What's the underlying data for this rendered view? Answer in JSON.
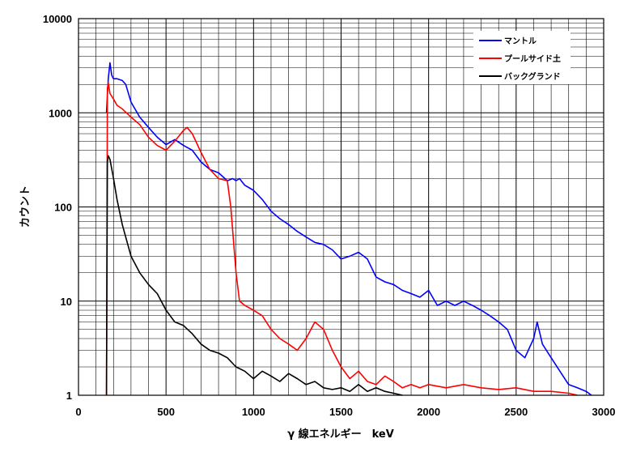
{
  "chart_data": {
    "type": "line",
    "title": "",
    "xlabel": "γ 線エネルギー　keV",
    "ylabel": "カウント",
    "xlim": [
      0,
      3000
    ],
    "ylim": [
      1,
      10000
    ],
    "y_scale": "log",
    "grid": true,
    "legend_position": "top-right",
    "x_ticks": [
      "0",
      "500",
      "1000",
      "1500",
      "2000",
      "2500",
      "3000"
    ],
    "y_ticks": [
      "1",
      "10",
      "100",
      "1000",
      "10000"
    ],
    "series": [
      {
        "name": "マントル",
        "color": "#0000ff",
        "x": [
          160,
          170,
          180,
          190,
          200,
          220,
          250,
          270,
          300,
          350,
          400,
          450,
          500,
          550,
          600,
          650,
          700,
          750,
          800,
          850,
          880,
          900,
          920,
          950,
          1000,
          1050,
          1100,
          1150,
          1200,
          1250,
          1300,
          1350,
          1400,
          1450,
          1500,
          1550,
          1600,
          1650,
          1700,
          1750,
          1800,
          1850,
          1900,
          1950,
          2000,
          2050,
          2100,
          2150,
          2200,
          2250,
          2300,
          2350,
          2400,
          2450,
          2500,
          2550,
          2600,
          2620,
          2650,
          2700,
          2750,
          2800,
          2850,
          2900,
          2930
        ],
        "y": [
          1000,
          2300,
          3400,
          2500,
          2300,
          2300,
          2200,
          2000,
          1300,
          900,
          700,
          550,
          460,
          520,
          450,
          400,
          300,
          250,
          230,
          190,
          200,
          190,
          200,
          170,
          150,
          120,
          90,
          75,
          65,
          55,
          48,
          42,
          40,
          35,
          28,
          30,
          33,
          28,
          18,
          16,
          15,
          13,
          12,
          11,
          13,
          9,
          10,
          9,
          10,
          9,
          8,
          7,
          6,
          5,
          3,
          2.5,
          4,
          6,
          3.5,
          2.5,
          1.8,
          1.3,
          1.2,
          1.1,
          1.0
        ]
      },
      {
        "name": "プールサイド土",
        "color": "#ff0000",
        "x": [
          160,
          165,
          170,
          180,
          200,
          220,
          250,
          300,
          350,
          400,
          450,
          500,
          550,
          600,
          620,
          650,
          700,
          750,
          800,
          850,
          870,
          900,
          920,
          950,
          1000,
          1050,
          1100,
          1150,
          1200,
          1250,
          1300,
          1350,
          1400,
          1450,
          1500,
          1550,
          1600,
          1650,
          1700,
          1750,
          1800,
          1850,
          1900,
          1950,
          2000,
          2100,
          2200,
          2300,
          2400,
          2500,
          2600,
          2700,
          2800,
          2850
        ],
        "y": [
          1,
          1800,
          2100,
          1600,
          1400,
          1200,
          1100,
          900,
          750,
          550,
          450,
          400,
          500,
          650,
          700,
          600,
          380,
          250,
          200,
          190,
          100,
          20,
          10,
          9,
          8,
          7,
          5,
          4,
          3.5,
          3,
          4,
          6,
          5,
          3,
          2,
          1.5,
          1.8,
          1.4,
          1.3,
          1.6,
          1.4,
          1.2,
          1.3,
          1.2,
          1.3,
          1.2,
          1.3,
          1.2,
          1.15,
          1.2,
          1.1,
          1.1,
          1.05,
          1.0
        ]
      },
      {
        "name": "バックグランド",
        "color": "#000000",
        "x": [
          160,
          165,
          170,
          180,
          200,
          220,
          250,
          300,
          350,
          400,
          450,
          500,
          550,
          600,
          650,
          700,
          750,
          800,
          850,
          900,
          950,
          1000,
          1050,
          1100,
          1150,
          1200,
          1250,
          1300,
          1350,
          1400,
          1450,
          1500,
          1550,
          1600,
          1650,
          1700,
          1750,
          1800,
          1850
        ],
        "y": [
          1,
          300,
          350,
          320,
          200,
          120,
          65,
          30,
          20,
          15,
          12,
          8,
          6,
          5.5,
          4.5,
          3.5,
          3,
          2.8,
          2.5,
          2,
          1.8,
          1.5,
          1.8,
          1.6,
          1.4,
          1.7,
          1.5,
          1.3,
          1.4,
          1.2,
          1.15,
          1.2,
          1.1,
          1.3,
          1.1,
          1.2,
          1.1,
          1.05,
          1.0
        ]
      }
    ]
  }
}
